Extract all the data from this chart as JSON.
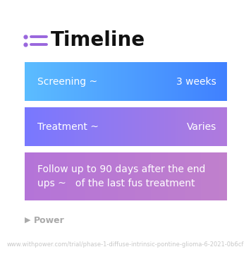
{
  "title": "Timeline",
  "background_color": "#ffffff",
  "cards": [
    {
      "left_text": "Screening ~",
      "right_text": "3 weeks",
      "color_start": "#5bbcff",
      "color_end": "#4488ff",
      "text_color": "#ffffff"
    },
    {
      "left_text": "Treatment ~",
      "right_text": "Varies",
      "color_start": "#7b82ff",
      "color_end": "#b07add",
      "text_color": "#ffffff"
    },
    {
      "left_text": "Follow up to 90 days after the end\nups ~   of the last fus treatment",
      "right_text": "",
      "color_start": "#b878d8",
      "color_end": "#c078cc",
      "text_color": "#ffffff"
    }
  ],
  "footer_text": "Power",
  "footer_url": "www.withpower.com/trial/phase-1-diffuse-intrinsic-pontine-glioma-6-2021-0b6cf",
  "icon_color": "#9966dd",
  "title_fontsize": 20,
  "card_fontsize": 10,
  "footer_fontsize": 6
}
